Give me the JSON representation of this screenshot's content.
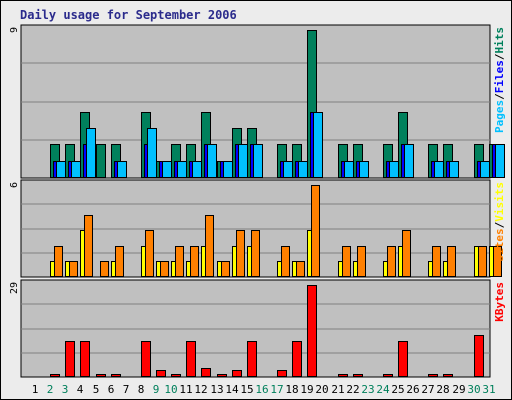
{
  "title": "Daily usage for September 2006",
  "colors": {
    "panel_bg": "#c0c0c0",
    "grid": "#808080",
    "hits": "#00805c",
    "files": "#0000ff",
    "pages": "#00c0ff",
    "visits": "#ffff00",
    "sites": "#ff8000",
    "kbytes": "#ff0000",
    "weekday": "#000000",
    "weekend": "#00805c"
  },
  "chart_data": [
    {
      "type": "bar",
      "panel": "hits-files-pages",
      "x": [
        1,
        2,
        3,
        4,
        5,
        6,
        7,
        8,
        9,
        10,
        11,
        12,
        13,
        14,
        15,
        16,
        17,
        18,
        19,
        20,
        21,
        22,
        23,
        24,
        25,
        26,
        27,
        28,
        29,
        30,
        31
      ],
      "ymax_label": "9",
      "ylim": [
        0,
        9
      ],
      "series": [
        {
          "name": "Hits",
          "color_key": "hits",
          "values": [
            0,
            2,
            2,
            4,
            2,
            2,
            0,
            4,
            1,
            2,
            2,
            4,
            1,
            3,
            3,
            0,
            2,
            2,
            9,
            0,
            2,
            2,
            0,
            2,
            4,
            0,
            2,
            2,
            0,
            2,
            2
          ]
        },
        {
          "name": "Files",
          "color_key": "files",
          "values": [
            0,
            1,
            1,
            2,
            0,
            1,
            0,
            2,
            1,
            1,
            1,
            2,
            1,
            2,
            2,
            0,
            1,
            1,
            4,
            0,
            1,
            1,
            0,
            1,
            2,
            0,
            1,
            1,
            0,
            1,
            2
          ]
        },
        {
          "name": "Pages",
          "color_key": "pages",
          "values": [
            0,
            1,
            1,
            3,
            0,
            1,
            0,
            3,
            1,
            1,
            1,
            2,
            1,
            2,
            2,
            0,
            1,
            1,
            4,
            0,
            1,
            1,
            0,
            1,
            2,
            0,
            1,
            1,
            0,
            1,
            2
          ]
        }
      ],
      "legend": [
        {
          "text": "Pages",
          "color_key": "pages"
        },
        {
          "text": "/",
          "color_key": "weekday"
        },
        {
          "text": "Files",
          "color_key": "files"
        },
        {
          "text": "/",
          "color_key": "weekday"
        },
        {
          "text": "Hits",
          "color_key": "hits"
        }
      ]
    },
    {
      "type": "bar",
      "panel": "visits-sites",
      "x": [
        1,
        2,
        3,
        4,
        5,
        6,
        7,
        8,
        9,
        10,
        11,
        12,
        13,
        14,
        15,
        16,
        17,
        18,
        19,
        20,
        21,
        22,
        23,
        24,
        25,
        26,
        27,
        28,
        29,
        30,
        31
      ],
      "ymax_label": "6",
      "ylim": [
        0,
        6
      ],
      "series": [
        {
          "name": "Visits",
          "color_key": "visits",
          "values": [
            0,
            1,
            1,
            3,
            0,
            1,
            0,
            2,
            1,
            1,
            1,
            2,
            1,
            2,
            2,
            0,
            1,
            1,
            3,
            0,
            1,
            1,
            0,
            1,
            2,
            0,
            1,
            1,
            0,
            2,
            2
          ]
        },
        {
          "name": "Sites",
          "color_key": "sites",
          "values": [
            0,
            2,
            1,
            4,
            1,
            2,
            0,
            3,
            1,
            2,
            2,
            4,
            1,
            3,
            3,
            0,
            2,
            1,
            6,
            0,
            2,
            2,
            0,
            2,
            3,
            0,
            2,
            2,
            0,
            2,
            2
          ]
        }
      ],
      "legend": [
        {
          "text": "Sites",
          "color_key": "sites"
        },
        {
          "text": "/",
          "color_key": "weekday"
        },
        {
          "text": "Visits",
          "color_key": "visits"
        }
      ]
    },
    {
      "type": "bar",
      "panel": "kbytes",
      "x": [
        1,
        2,
        3,
        4,
        5,
        6,
        7,
        8,
        9,
        10,
        11,
        12,
        13,
        14,
        15,
        16,
        17,
        18,
        19,
        20,
        21,
        22,
        23,
        24,
        25,
        26,
        27,
        28,
        29,
        30,
        31
      ],
      "ymax_label": "29",
      "ylim": [
        0,
        29
      ],
      "series": [
        {
          "name": "KBytes",
          "color_key": "kbytes",
          "values": [
            0,
            0.5,
            11,
            11,
            0.5,
            0.5,
            0,
            11,
            2,
            0.5,
            11,
            2.5,
            0.5,
            2,
            11,
            0,
            2,
            11,
            29,
            0,
            0.5,
            0.5,
            0,
            0.5,
            11,
            0,
            0.5,
            0.5,
            0,
            13,
            0
          ]
        }
      ],
      "legend": [
        {
          "text": "KBytes",
          "color_key": "kbytes"
        }
      ]
    }
  ],
  "days": [
    {
      "label": "1",
      "weekend": false
    },
    {
      "label": "2",
      "weekend": true
    },
    {
      "label": "3",
      "weekend": true
    },
    {
      "label": "4",
      "weekend": false
    },
    {
      "label": "5",
      "weekend": false
    },
    {
      "label": "6",
      "weekend": false
    },
    {
      "label": "7",
      "weekend": false
    },
    {
      "label": "8",
      "weekend": false
    },
    {
      "label": "9",
      "weekend": true
    },
    {
      "label": "10",
      "weekend": true
    },
    {
      "label": "11",
      "weekend": false
    },
    {
      "label": "12",
      "weekend": false
    },
    {
      "label": "13",
      "weekend": false
    },
    {
      "label": "14",
      "weekend": false
    },
    {
      "label": "15",
      "weekend": false
    },
    {
      "label": "16",
      "weekend": true
    },
    {
      "label": "17",
      "weekend": true
    },
    {
      "label": "18",
      "weekend": false
    },
    {
      "label": "19",
      "weekend": false
    },
    {
      "label": "20",
      "weekend": false
    },
    {
      "label": "21",
      "weekend": false
    },
    {
      "label": "22",
      "weekend": false
    },
    {
      "label": "23",
      "weekend": true
    },
    {
      "label": "24",
      "weekend": true
    },
    {
      "label": "25",
      "weekend": false
    },
    {
      "label": "26",
      "weekend": false
    },
    {
      "label": "27",
      "weekend": false
    },
    {
      "label": "28",
      "weekend": false
    },
    {
      "label": "29",
      "weekend": false
    },
    {
      "label": "30",
      "weekend": true
    },
    {
      "label": "31",
      "weekend": true
    }
  ]
}
